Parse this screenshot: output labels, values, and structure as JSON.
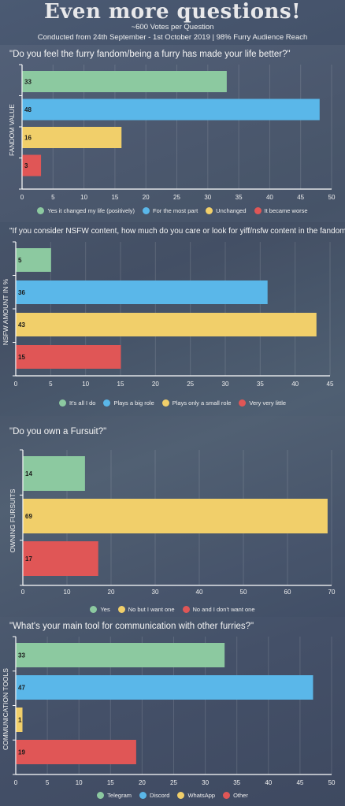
{
  "header": {
    "title": "Even more questions!",
    "votes": "~600 Votes per Question",
    "period": "Conducted from 24th September - 1st October 2019 | 98% Furry Audience Reach"
  },
  "colors": {
    "green": "#8cc9a0",
    "blue": "#5ab7e9",
    "yellow": "#f1cf6a",
    "red": "#e05656"
  },
  "chart_data": [
    {
      "type": "bar",
      "orientation": "horizontal",
      "question": "\"Do you feel the furry fandom/being a furry has made your life better?\"",
      "ylabel": "FANDOM VALUE",
      "xlim": [
        0,
        50
      ],
      "xticks": [
        "0",
        "5",
        "10",
        "15",
        "20",
        "25",
        "30",
        "35",
        "40",
        "45",
        "50"
      ],
      "categories": [
        "Yes it changed my life (positively)",
        "For the most part",
        "Unchanged",
        "It became worse"
      ],
      "values": [
        33,
        48,
        16,
        3
      ],
      "value_labels": [
        "33",
        "48",
        "16",
        "3"
      ],
      "colors": [
        "#8cc9a0",
        "#5ab7e9",
        "#f1cf6a",
        "#e05656"
      ]
    },
    {
      "type": "bar",
      "orientation": "horizontal",
      "question": "\"If you consider NSFW content, how much do you care or look for yiff/nsfw content in the fandom?\"",
      "ylabel": "NSFW AMOUNT IN %",
      "xlim": [
        0,
        45
      ],
      "xticks": [
        "0",
        "5",
        "10",
        "15",
        "20",
        "25",
        "30",
        "35",
        "40",
        "45"
      ],
      "categories": [
        "It's all I do",
        "Plays a big role",
        "Plays only a small role",
        "Very very little"
      ],
      "values": [
        5,
        36,
        43,
        15
      ],
      "value_labels": [
        "5",
        "36",
        "43",
        "15"
      ],
      "colors": [
        "#8cc9a0",
        "#5ab7e9",
        "#f1cf6a",
        "#e05656"
      ]
    },
    {
      "type": "bar",
      "orientation": "horizontal",
      "question": "\"Do you own a Fursuit?\"",
      "ylabel": "OWNING FURSUITS",
      "xlim": [
        0,
        70
      ],
      "xticks": [
        "0",
        "10",
        "20",
        "30",
        "40",
        "50",
        "60",
        "70"
      ],
      "categories": [
        "Yes",
        "No but I want one",
        "No and I don't want one"
      ],
      "values": [
        14,
        69,
        17
      ],
      "value_labels": [
        "14",
        "69",
        "17"
      ],
      "colors": [
        "#8cc9a0",
        "#f1cf6a",
        "#e05656"
      ]
    },
    {
      "type": "bar",
      "orientation": "horizontal",
      "question": "\"What's your main tool for communication with other furries?\"",
      "ylabel": "COMMUNICATION TOOLS",
      "xlim": [
        0,
        50
      ],
      "xticks": [
        "0",
        "5",
        "10",
        "15",
        "20",
        "25",
        "30",
        "35",
        "40",
        "45",
        "50"
      ],
      "categories": [
        "Telegram",
        "Discord",
        "WhatsApp",
        "Other"
      ],
      "values": [
        33,
        47,
        1,
        19
      ],
      "value_labels": [
        "33",
        "47",
        "1",
        "19"
      ],
      "colors": [
        "#8cc9a0",
        "#5ab7e9",
        "#f1cf6a",
        "#e05656"
      ]
    }
  ]
}
